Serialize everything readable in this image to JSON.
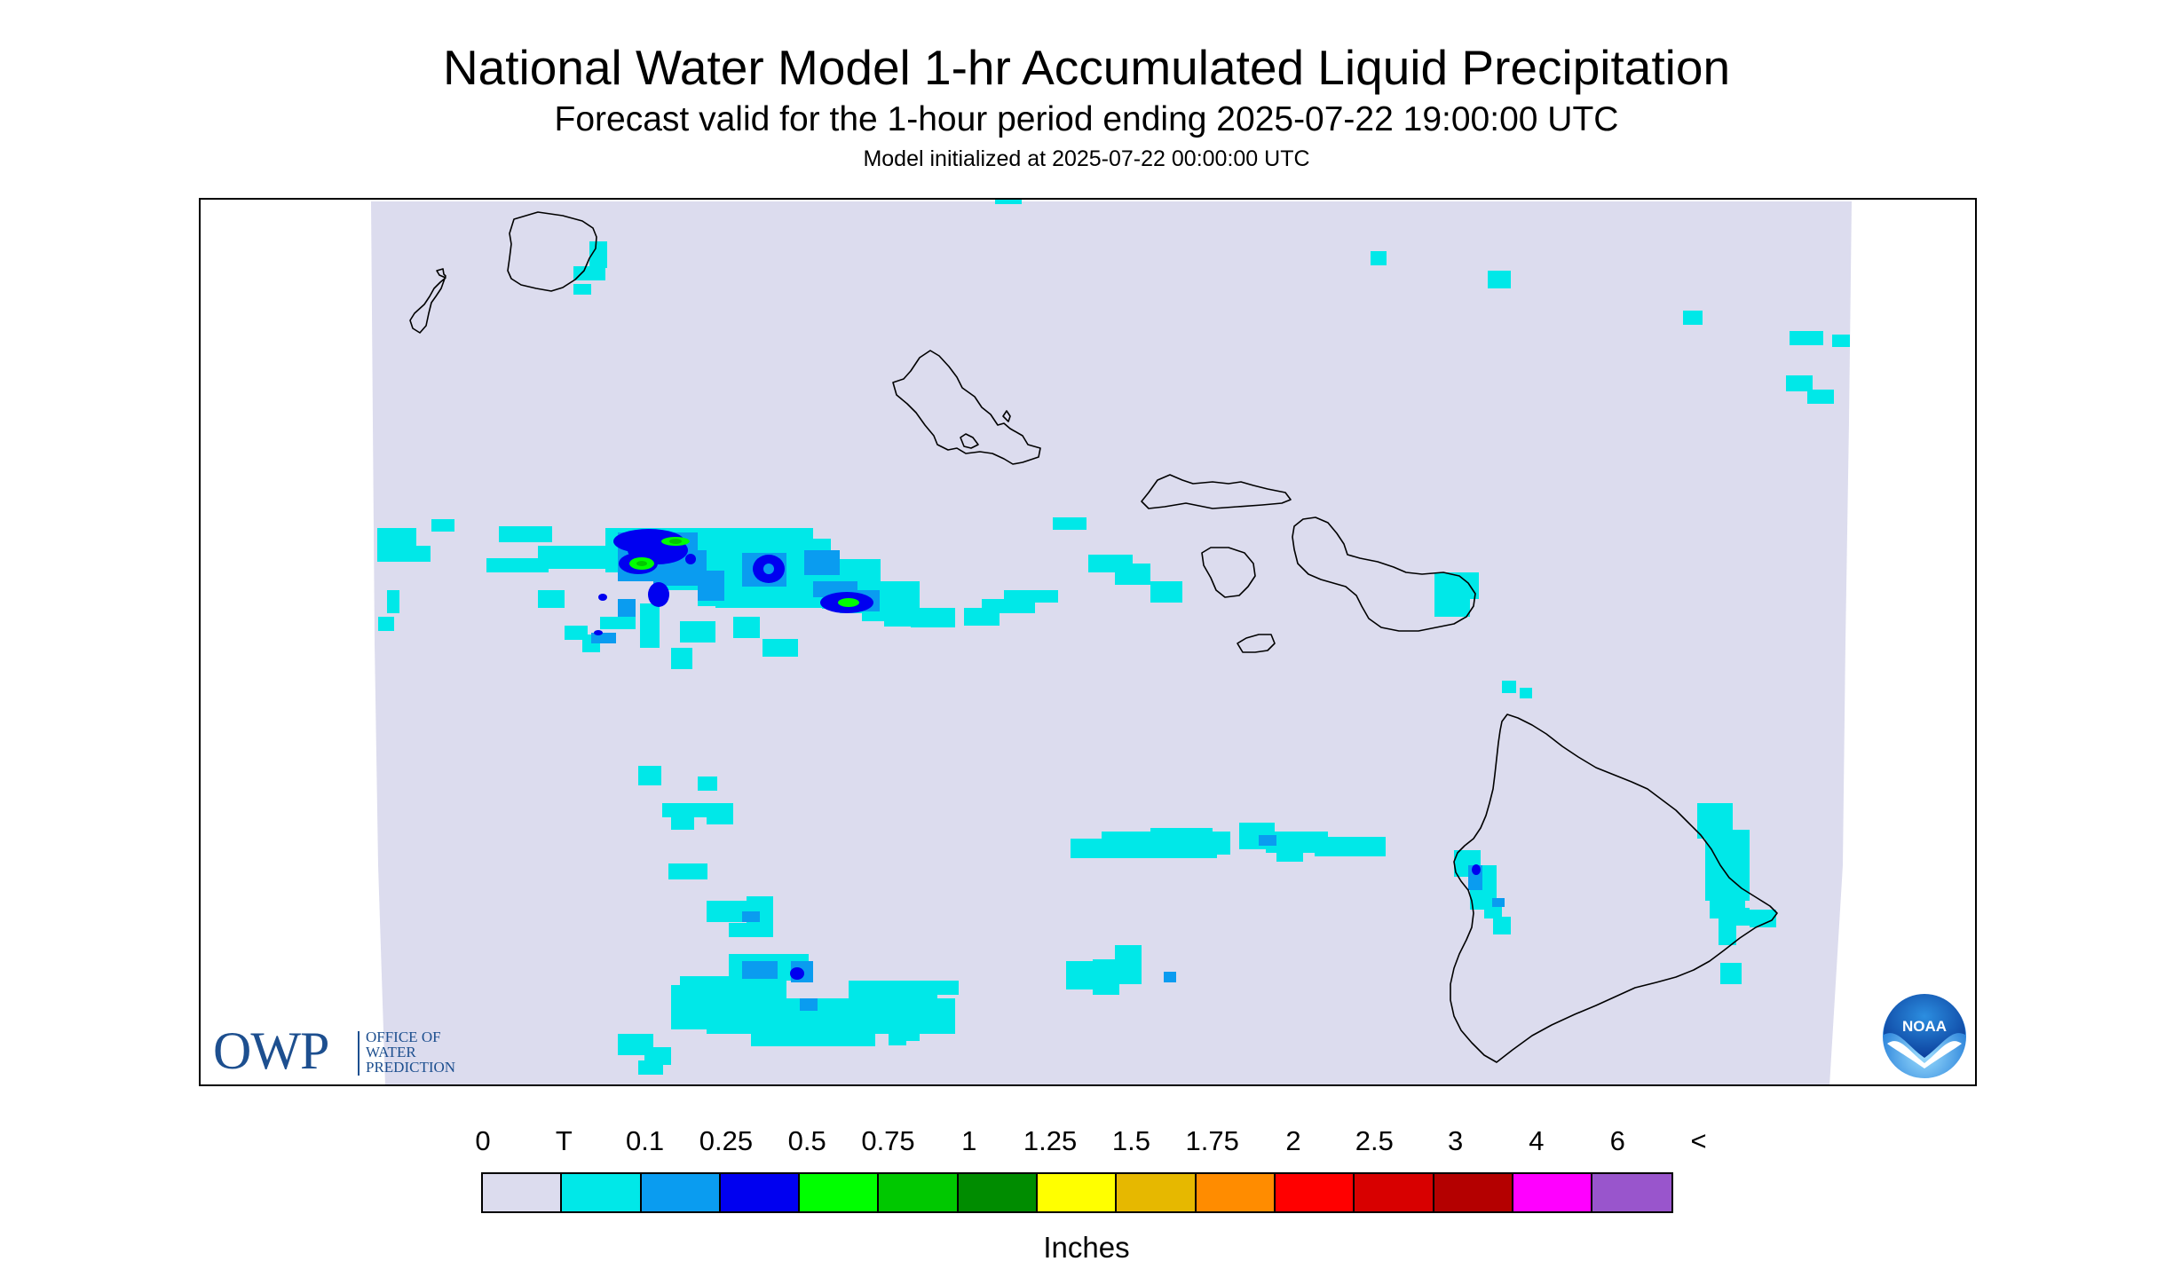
{
  "title": "National Water Model 1-hr Accumulated Liquid Precipitation",
  "subtitle": "Forecast valid for the 1-hour period ending 2025-07-22 19:00:00 UTC",
  "init_line": "Model initialized at 2025-07-22 00:00:00 UTC",
  "owp_logo": {
    "letters": "OWP",
    "line1": "OFFICE OF",
    "line2": "WATER",
    "line3": "PREDICTION"
  },
  "noaa_logo": {
    "text": "NOAA",
    "icon": "noaa-logo-icon"
  },
  "legend": {
    "labels": [
      "0",
      "T",
      "0.1",
      "0.25",
      "0.5",
      "0.75",
      "1",
      "1.25",
      "1.5",
      "1.75",
      "2",
      "2.5",
      "3",
      "4",
      "6",
      "<"
    ],
    "colors": [
      "#dcdcee",
      "#00e8e8",
      "#0a9cf0",
      "#0000f0",
      "#00ff00",
      "#00c800",
      "#008c00",
      "#ffff00",
      "#e6b800",
      "#ff8c00",
      "#ff0000",
      "#d80000",
      "#b40000",
      "#ff00ff",
      "#9955cc"
    ],
    "units": "Inches"
  },
  "map": {
    "region": "Hawaiian Islands",
    "background_color": "#dcdcee",
    "coast_color": "#000000"
  }
}
